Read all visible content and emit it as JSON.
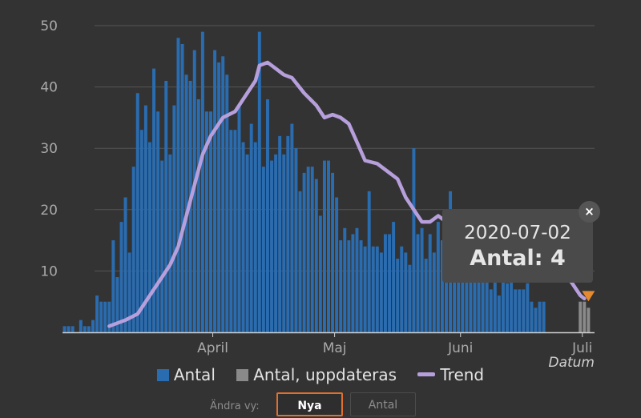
{
  "chart_data": {
    "type": "bar",
    "ylim": [
      0,
      50
    ],
    "yticks": [
      10,
      20,
      30,
      40,
      50
    ],
    "xlabel": "Datum",
    "x_start": "2020-02-24",
    "x_end": "2020-07-04",
    "xticks": [
      {
        "date": "2020-04-01",
        "label": "April"
      },
      {
        "date": "2020-05-01",
        "label": "Maj"
      },
      {
        "date": "2020-06-01",
        "label": "Juni"
      },
      {
        "date": "2020-07-01",
        "label": "Juli"
      }
    ],
    "legend": [
      {
        "label": "Antal",
        "color": "#2a6cb0",
        "shape": "square"
      },
      {
        "label": "Antal, uppdateras",
        "color": "#8a8a8a",
        "shape": "square"
      },
      {
        "label": "Trend",
        "color": "#b79fdc",
        "shape": "line"
      }
    ],
    "series": [
      {
        "name": "Antal",
        "color": "#2a6cb0",
        "values": [
          1,
          1,
          1,
          0,
          2,
          1,
          1,
          2,
          6,
          5,
          5,
          5,
          15,
          9,
          18,
          22,
          13,
          27,
          39,
          33,
          37,
          31,
          43,
          36,
          28,
          41,
          29,
          37,
          48,
          47,
          42,
          41,
          46,
          38,
          49,
          36,
          36,
          46,
          44,
          45,
          42,
          33,
          33,
          37,
          31,
          29,
          34,
          31,
          49,
          27,
          38,
          28,
          29,
          32,
          29,
          32,
          34,
          30,
          23,
          26,
          27,
          27,
          25,
          19,
          28,
          28,
          26,
          22,
          15,
          17,
          15,
          16,
          17,
          15,
          14,
          23,
          14,
          14,
          13,
          16,
          16,
          18,
          12,
          14,
          13,
          11,
          30,
          16,
          17,
          12,
          16,
          13,
          18,
          15,
          17,
          23,
          17,
          15,
          15,
          14,
          13,
          12,
          13,
          10,
          11,
          7,
          9,
          6,
          10,
          8,
          9,
          7,
          7,
          7,
          8,
          5,
          4,
          5,
          5
        ]
      },
      {
        "name": "Antal, uppdateras",
        "color": "#8a8a8a",
        "points": [
          {
            "date": "2020-06-30",
            "value": 5
          },
          {
            "date": "2020-07-01",
            "value": 5
          },
          {
            "date": "2020-07-02",
            "value": 4
          }
        ]
      },
      {
        "name": "Trend",
        "color": "#b79fdc",
        "points": [
          [
            "2020-03-06",
            1
          ],
          [
            "2020-03-10",
            2
          ],
          [
            "2020-03-13",
            3
          ],
          [
            "2020-03-15",
            5
          ],
          [
            "2020-03-17",
            7
          ],
          [
            "2020-03-19",
            9
          ],
          [
            "2020-03-21",
            11
          ],
          [
            "2020-03-23",
            14
          ],
          [
            "2020-03-25",
            19
          ],
          [
            "2020-03-27",
            24
          ],
          [
            "2020-03-29",
            29
          ],
          [
            "2020-03-31",
            32
          ],
          [
            "2020-04-03",
            35
          ],
          [
            "2020-04-06",
            36
          ],
          [
            "2020-04-09",
            39
          ],
          [
            "2020-04-11",
            41
          ],
          [
            "2020-04-12",
            43.5
          ],
          [
            "2020-04-14",
            44
          ],
          [
            "2020-04-16",
            43
          ],
          [
            "2020-04-18",
            42
          ],
          [
            "2020-04-20",
            41.5
          ],
          [
            "2020-04-23",
            39
          ],
          [
            "2020-04-26",
            37
          ],
          [
            "2020-04-28",
            35
          ],
          [
            "2020-04-30",
            35.5
          ],
          [
            "2020-05-02",
            35
          ],
          [
            "2020-05-04",
            34
          ],
          [
            "2020-05-06",
            31
          ],
          [
            "2020-05-08",
            28
          ],
          [
            "2020-05-11",
            27.5
          ],
          [
            "2020-05-14",
            26
          ],
          [
            "2020-05-16",
            25
          ],
          [
            "2020-05-18",
            22
          ],
          [
            "2020-05-20",
            20
          ],
          [
            "2020-05-22",
            18
          ],
          [
            "2020-05-24",
            18
          ],
          [
            "2020-05-26",
            19
          ],
          [
            "2020-05-28",
            18
          ],
          [
            "2020-05-30",
            17
          ],
          [
            "2020-06-01",
            16.5
          ],
          [
            "2020-06-03",
            17
          ],
          [
            "2020-06-05",
            17.5
          ],
          [
            "2020-06-07",
            18
          ],
          [
            "2020-06-09",
            18.5
          ],
          [
            "2020-06-11",
            18.5
          ],
          [
            "2020-06-14",
            18
          ],
          [
            "2020-06-17",
            17
          ],
          [
            "2020-06-20",
            15
          ],
          [
            "2020-06-23",
            12
          ],
          [
            "2020-06-26",
            9.5
          ],
          [
            "2020-06-28",
            8
          ],
          [
            "2020-06-30",
            6
          ],
          [
            "2020-07-01",
            5.5
          ]
        ]
      }
    ],
    "tooltip": {
      "date": "2020-07-02",
      "line": "Antal: 4",
      "marker_color": "#e58a2e"
    }
  },
  "tooltip_close_glyph": "×",
  "controls": {
    "label": "Ändra vy:",
    "buttons": [
      {
        "label": "Nya",
        "selected": true
      },
      {
        "label": "Antal",
        "selected": false
      }
    ]
  }
}
